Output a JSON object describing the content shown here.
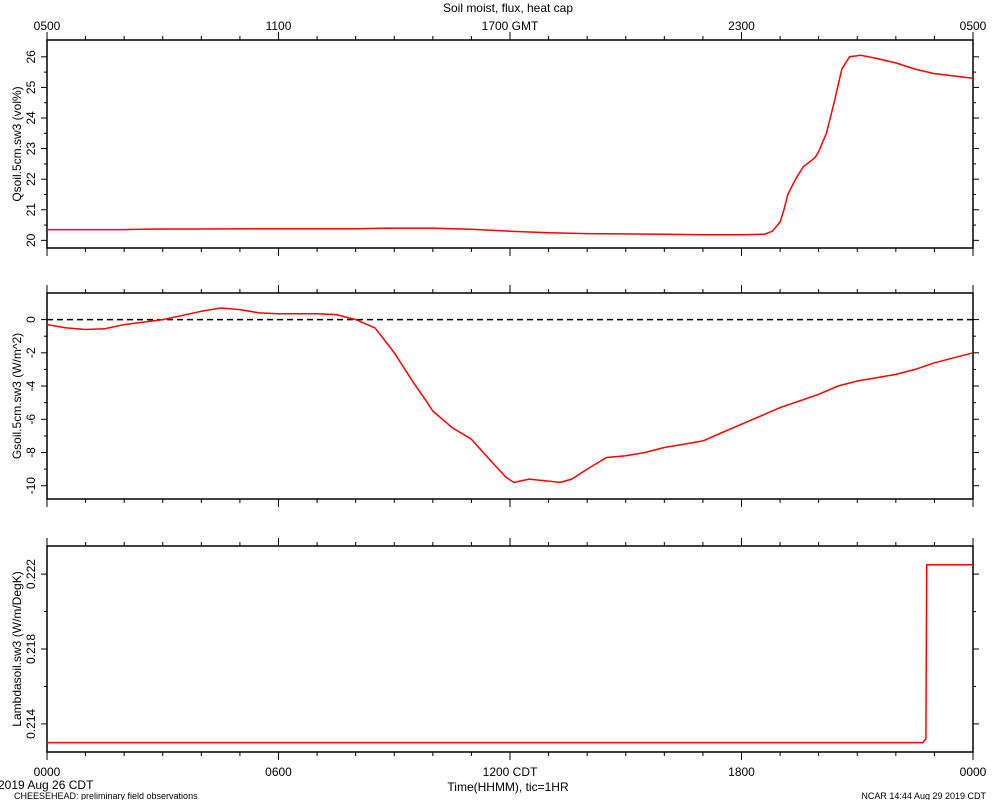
{
  "title": "Soil moist, flux, heat cap",
  "top_axis": {
    "ticks": [
      "0500",
      "1100",
      "1700 GMT",
      "2300",
      "0500"
    ]
  },
  "bottom_axis": {
    "ticks": [
      "0000",
      "0600",
      "1200 CDT",
      "1800",
      "0000"
    ],
    "label": "Time(HHMM), tic=1HR",
    "date_label": "2019 Aug 26 CDT"
  },
  "footer": {
    "left": "CHEESEHEAD: preliminary field observations",
    "right": "NCAR 14:44 Aug 29 2019 CDT"
  },
  "colors": {
    "series": "#ff0000",
    "zero_line": "#000000"
  },
  "chart_data": [
    {
      "type": "line",
      "ylabel": "Qsoil.5cm.sw3 (vol%)",
      "ylim": [
        19.75,
        26.55
      ],
      "yticks": [
        20,
        21,
        22,
        23,
        24,
        25,
        26
      ],
      "xlim_hours": [
        0,
        24
      ],
      "x_hours": [
        0,
        2,
        3,
        4,
        6,
        8,
        8.5,
        9,
        10,
        10.5,
        11,
        12,
        13,
        14,
        16,
        17,
        18,
        18.6,
        18.8,
        19,
        19.1,
        19.2,
        19.4,
        19.6,
        19.8,
        19.9,
        20.0,
        20.1,
        20.2,
        20.4,
        20.6,
        20.8,
        21.1,
        21.5,
        22,
        22.5,
        23,
        24
      ],
      "values": [
        20.35,
        20.35,
        20.37,
        20.37,
        20.38,
        20.38,
        20.39,
        20.4,
        20.4,
        20.38,
        20.36,
        20.3,
        20.25,
        20.22,
        20.2,
        20.18,
        20.18,
        20.2,
        20.3,
        20.6,
        21.0,
        21.5,
        22.0,
        22.4,
        22.6,
        22.7,
        22.9,
        23.2,
        23.5,
        24.5,
        25.6,
        26.0,
        26.05,
        25.95,
        25.8,
        25.6,
        25.45,
        25.3
      ]
    },
    {
      "type": "line",
      "ylabel": "Gsoil.5cm.sw3 (W/m^2)",
      "ylim": [
        -10.8,
        1.6
      ],
      "yticks": [
        0,
        -2,
        -4,
        -6,
        -8,
        -10
      ],
      "zero_line": true,
      "xlim_hours": [
        0,
        24
      ],
      "x_hours": [
        0,
        0.5,
        1,
        1.5,
        2,
        3,
        4,
        4.5,
        5,
        5.5,
        6,
        7,
        7.5,
        8,
        8.5,
        9,
        9.5,
        9.8,
        10,
        10.5,
        11,
        11.5,
        11.9,
        12.1,
        12.5,
        12.9,
        13.3,
        13.6,
        14,
        14.5,
        15,
        15.5,
        16,
        16.5,
        17,
        17.5,
        18,
        18.5,
        19,
        19.5,
        20,
        20.5,
        21,
        21.5,
        22,
        22.5,
        23,
        23.5,
        24
      ],
      "values": [
        -0.3,
        -0.5,
        -0.6,
        -0.55,
        -0.3,
        0.0,
        0.5,
        0.7,
        0.6,
        0.4,
        0.35,
        0.35,
        0.3,
        0.0,
        -0.5,
        -2.0,
        -3.8,
        -4.8,
        -5.5,
        -6.5,
        -7.2,
        -8.5,
        -9.5,
        -9.8,
        -9.6,
        -9.7,
        -9.8,
        -9.6,
        -9.0,
        -8.3,
        -8.2,
        -8.0,
        -7.7,
        -7.5,
        -7.3,
        -6.8,
        -6.3,
        -5.8,
        -5.3,
        -4.9,
        -4.5,
        -4.0,
        -3.7,
        -3.5,
        -3.3,
        -3.0,
        -2.6,
        -2.3,
        -2.0
      ]
    },
    {
      "type": "line",
      "ylabel": "Lambdasoil.sw3 (W/m/DegK)",
      "ylim": [
        0.2125,
        0.2235
      ],
      "yticks": [
        0.214,
        0.218,
        0.222
      ],
      "xlim_hours": [
        0,
        24
      ],
      "x_hours": [
        0,
        22.7,
        22.78,
        22.8,
        24
      ],
      "values": [
        0.213,
        0.213,
        0.2132,
        0.2225,
        0.2225
      ]
    }
  ]
}
